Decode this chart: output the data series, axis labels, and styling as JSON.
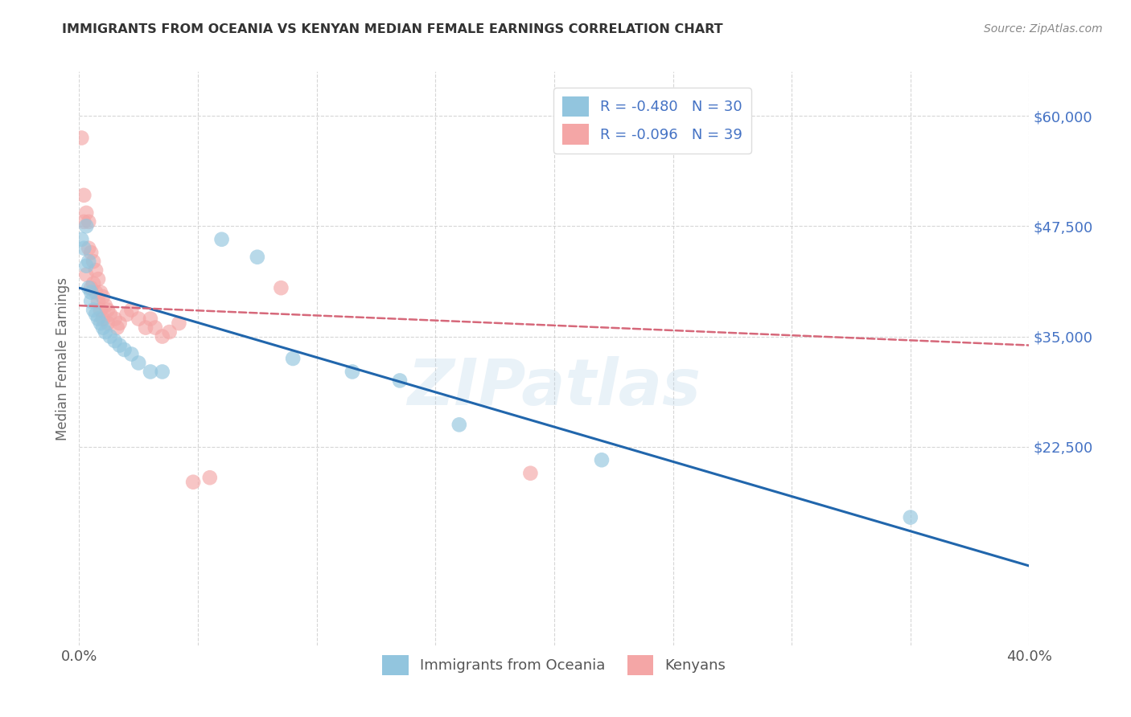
{
  "title": "IMMIGRANTS FROM OCEANIA VS KENYAN MEDIAN FEMALE EARNINGS CORRELATION CHART",
  "source": "Source: ZipAtlas.com",
  "ylabel": "Median Female Earnings",
  "legend_blue_label": "R = -0.480   N = 30",
  "legend_pink_label": "R = -0.096   N = 39",
  "legend_bottom_blue": "Immigrants from Oceania",
  "legend_bottom_pink": "Kenyans",
  "watermark": "ZIPatlas",
  "blue_color": "#92c5de",
  "pink_color": "#f4a6a6",
  "line_blue": "#2166ac",
  "line_pink": "#d6687a",
  "xmin": 0.0,
  "xmax": 0.4,
  "ymin": 0,
  "ymax": 65000,
  "blue_scatter_x": [
    0.001,
    0.002,
    0.003,
    0.003,
    0.004,
    0.004,
    0.005,
    0.005,
    0.006,
    0.007,
    0.008,
    0.009,
    0.01,
    0.011,
    0.013,
    0.015,
    0.017,
    0.019,
    0.022,
    0.025,
    0.03,
    0.035,
    0.06,
    0.075,
    0.09,
    0.115,
    0.135,
    0.16,
    0.22,
    0.35
  ],
  "blue_scatter_y": [
    46000,
    45000,
    43000,
    47500,
    43500,
    40500,
    40000,
    39000,
    38000,
    37500,
    37000,
    36500,
    36000,
    35500,
    35000,
    34500,
    34000,
    33500,
    33000,
    32000,
    31000,
    31000,
    46000,
    44000,
    32500,
    31000,
    30000,
    25000,
    21000,
    14500
  ],
  "pink_scatter_x": [
    0.001,
    0.002,
    0.002,
    0.003,
    0.003,
    0.004,
    0.004,
    0.005,
    0.005,
    0.006,
    0.006,
    0.007,
    0.007,
    0.008,
    0.008,
    0.009,
    0.009,
    0.01,
    0.01,
    0.011,
    0.012,
    0.012,
    0.013,
    0.015,
    0.016,
    0.017,
    0.02,
    0.022,
    0.025,
    0.028,
    0.03,
    0.032,
    0.035,
    0.038,
    0.042,
    0.048,
    0.055,
    0.085,
    0.19
  ],
  "pink_scatter_y": [
    57500,
    51000,
    48000,
    49000,
    42000,
    48000,
    45000,
    44500,
    40500,
    43500,
    41000,
    42500,
    40000,
    41500,
    39000,
    40000,
    38000,
    39500,
    37000,
    38500,
    38000,
    36500,
    37500,
    37000,
    36000,
    36500,
    37500,
    38000,
    37000,
    36000,
    37000,
    36000,
    35000,
    35500,
    36500,
    18500,
    19000,
    40500,
    19500
  ],
  "blue_line_x": [
    0.0,
    0.4
  ],
  "blue_line_y": [
    40500,
    9000
  ],
  "pink_line_x": [
    0.0,
    0.4
  ],
  "pink_line_y": [
    38500,
    34000
  ],
  "background_color": "#ffffff",
  "grid_color": "#cccccc",
  "title_color": "#333333"
}
